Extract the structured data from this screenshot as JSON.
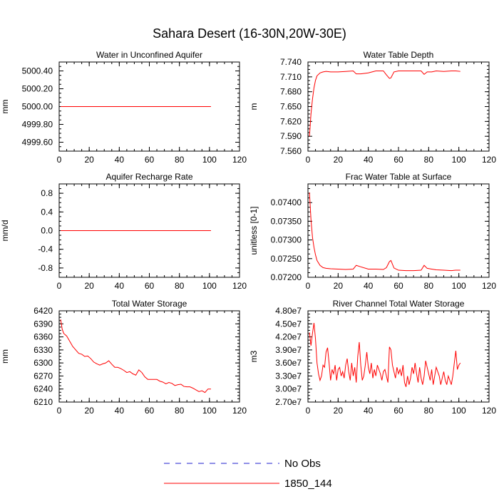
{
  "figure": {
    "title": "Sahara Desert (16-30N,20W-30E)"
  },
  "legend": {
    "items": [
      {
        "label": "No Obs",
        "color": "#1f1fcf",
        "dash": true
      },
      {
        "label": "1850_144",
        "color": "#ff0000",
        "dash": false
      }
    ]
  },
  "chart_data": [
    {
      "type": "line",
      "title": "Water in Unconfined Aquifer",
      "xlabel": "",
      "ylabel": "mm",
      "xlim": [
        0,
        120
      ],
      "ylim": [
        4999.5,
        5000.5
      ],
      "xticks": [
        0,
        20,
        40,
        60,
        80,
        100,
        120
      ],
      "yticks": [
        4999.6,
        4999.8,
        5000.0,
        5000.2,
        5000.4
      ],
      "ytick_labels": [
        "4999.60",
        "4999.80",
        "5000.00",
        "5000.20",
        "5000.40"
      ],
      "series": [
        {
          "name": "1850_144",
          "color": "#ff0000",
          "x": [
            1,
            101
          ],
          "y": [
            5000.0,
            5000.0
          ]
        }
      ]
    },
    {
      "type": "line",
      "title": "Water Table Depth",
      "xlabel": "",
      "ylabel": "m",
      "xlim": [
        0,
        120
      ],
      "ylim": [
        7.56,
        7.74
      ],
      "xticks": [
        0,
        20,
        40,
        60,
        80,
        100,
        120
      ],
      "yticks": [
        7.56,
        7.59,
        7.62,
        7.65,
        7.68,
        7.71,
        7.74
      ],
      "ytick_labels": [
        "7.560",
        "7.590",
        "7.620",
        "7.650",
        "7.680",
        "7.710",
        "7.740"
      ],
      "series": [
        {
          "name": "1850_144",
          "color": "#ff0000",
          "x": [
            1,
            2,
            3,
            4,
            5,
            6,
            8,
            10,
            12,
            15,
            20,
            25,
            30,
            32,
            35,
            40,
            45,
            50,
            52,
            54,
            55,
            57,
            60,
            65,
            70,
            75,
            77,
            79,
            82,
            85,
            90,
            95,
            98,
            101
          ],
          "y": [
            7.59,
            7.635,
            7.665,
            7.688,
            7.703,
            7.712,
            7.718,
            7.72,
            7.721,
            7.72,
            7.72,
            7.721,
            7.722,
            7.716,
            7.716,
            7.718,
            7.722,
            7.722,
            7.714,
            7.707,
            7.708,
            7.72,
            7.722,
            7.722,
            7.722,
            7.722,
            7.715,
            7.72,
            7.72,
            7.722,
            7.721,
            7.722,
            7.722,
            7.721
          ]
        }
      ]
    },
    {
      "type": "line",
      "title": "Aquifer Recharge Rate",
      "xlabel": "",
      "ylabel": "mm/d",
      "xlim": [
        0,
        120
      ],
      "ylim": [
        -1.0,
        1.0
      ],
      "xticks": [
        0,
        20,
        40,
        60,
        80,
        100,
        120
      ],
      "yticks": [
        -0.8,
        -0.4,
        0.0,
        0.4,
        0.8
      ],
      "ytick_labels": [
        "-0.8",
        "-0.4",
        "0.0",
        "0.4",
        "0.8"
      ],
      "series": [
        {
          "name": "1850_144",
          "color": "#ff0000",
          "x": [
            1,
            101
          ],
          "y": [
            0.0,
            0.0
          ]
        }
      ]
    },
    {
      "type": "line",
      "title": "Frac Water Table at Surface",
      "xlabel": "",
      "ylabel": "unitless [0-1]",
      "xlim": [
        0,
        120
      ],
      "ylim": [
        0.072,
        0.0745
      ],
      "xticks": [
        0,
        20,
        40,
        60,
        80,
        100,
        120
      ],
      "yticks": [
        0.072,
        0.0725,
        0.073,
        0.0735,
        0.074
      ],
      "ytick_labels": [
        "0.07200",
        "0.07250",
        "0.07300",
        "0.07350",
        "0.07400"
      ],
      "series": [
        {
          "name": "1850_144",
          "color": "#ff0000",
          "x": [
            1,
            2,
            3,
            4,
            5,
            6,
            8,
            10,
            12,
            15,
            20,
            25,
            30,
            32,
            35,
            40,
            45,
            50,
            52,
            54,
            55,
            57,
            60,
            65,
            70,
            75,
            77,
            79,
            82,
            85,
            90,
            95,
            98,
            101
          ],
          "y": [
            0.07427,
            0.07355,
            0.07307,
            0.0728,
            0.0726,
            0.07245,
            0.07232,
            0.07226,
            0.07224,
            0.07223,
            0.07222,
            0.07221,
            0.07222,
            0.07232,
            0.07228,
            0.07222,
            0.07222,
            0.07221,
            0.07226,
            0.07242,
            0.07245,
            0.07225,
            0.07219,
            0.07218,
            0.07218,
            0.07219,
            0.07232,
            0.07224,
            0.07222,
            0.0722,
            0.07219,
            0.07218,
            0.07219,
            0.07219
          ]
        }
      ]
    },
    {
      "type": "line",
      "title": "Total Water Storage",
      "xlabel": "",
      "ylabel": "mm",
      "xlim": [
        0,
        120
      ],
      "ylim": [
        6210,
        6420
      ],
      "xticks": [
        0,
        20,
        40,
        60,
        80,
        100,
        120
      ],
      "yticks": [
        6210,
        6240,
        6270,
        6300,
        6330,
        6360,
        6390,
        6420
      ],
      "ytick_labels": [
        "6210",
        "6240",
        "6270",
        "6300",
        "6330",
        "6360",
        "6390",
        "6420"
      ],
      "series": [
        {
          "name": "1850_144",
          "color": "#ff0000",
          "x": [
            1,
            2,
            3,
            5,
            7,
            9,
            11,
            13,
            15,
            17,
            19,
            21,
            23,
            25,
            27,
            29,
            31,
            33,
            35,
            37,
            39,
            41,
            43,
            45,
            47,
            49,
            51,
            53,
            55,
            57,
            59,
            61,
            63,
            65,
            67,
            69,
            71,
            73,
            75,
            77,
            79,
            81,
            83,
            85,
            87,
            89,
            91,
            93,
            95,
            97,
            99,
            101
          ],
          "y": [
            6400,
            6378,
            6368,
            6362,
            6350,
            6338,
            6330,
            6322,
            6320,
            6315,
            6316,
            6310,
            6302,
            6298,
            6295,
            6298,
            6300,
            6305,
            6297,
            6290,
            6290,
            6287,
            6283,
            6278,
            6280,
            6275,
            6272,
            6284,
            6278,
            6268,
            6262,
            6262,
            6262,
            6262,
            6258,
            6256,
            6252,
            6255,
            6253,
            6248,
            6250,
            6251,
            6246,
            6245,
            6245,
            6242,
            6238,
            6234,
            6236,
            6232,
            6240,
            6240
          ]
        }
      ]
    },
    {
      "type": "line",
      "title": "River Channel Total Water Storage",
      "xlabel": "",
      "ylabel": "m3",
      "xlim": [
        0,
        120
      ],
      "ylim": [
        27000000.0,
        48000000.0
      ],
      "xticks": [
        0,
        20,
        40,
        60,
        80,
        100,
        120
      ],
      "yticks": [
        27000000.0,
        30000000.0,
        33000000.0,
        36000000.0,
        39000000.0,
        42000000.0,
        45000000.0,
        48000000.0
      ],
      "ytick_labels": [
        "2.70e7",
        "3.00e7",
        "3.30e7",
        "3.60e7",
        "3.90e7",
        "4.20e7",
        "4.50e7",
        "4.80e7"
      ],
      "series": [
        {
          "name": "1850_144",
          "color": "#ff0000",
          "x": [
            1,
            2,
            3,
            4,
            5,
            6,
            7,
            8,
            9,
            10,
            11,
            12,
            13,
            14,
            15,
            16,
            17,
            18,
            19,
            20,
            21,
            22,
            23,
            24,
            25,
            26,
            27,
            28,
            29,
            30,
            31,
            32,
            33,
            34,
            35,
            36,
            37,
            38,
            39,
            40,
            41,
            42,
            43,
            44,
            45,
            46,
            47,
            48,
            49,
            50,
            51,
            52,
            53,
            54,
            55,
            56,
            57,
            58,
            59,
            60,
            61,
            62,
            63,
            64,
            65,
            66,
            67,
            68,
            69,
            70,
            71,
            72,
            73,
            74,
            75,
            76,
            77,
            78,
            79,
            80,
            81,
            82,
            83,
            84,
            85,
            86,
            87,
            88,
            89,
            90,
            91,
            92,
            93,
            94,
            95,
            96,
            97,
            98,
            99,
            100,
            101
          ],
          "y": [
            43000000.0,
            40000000.0,
            42800000.0,
            45200000.0,
            41500000.0,
            36000000.0,
            33500000.0,
            32000000.0,
            33000000.0,
            35500000.0,
            35000000.0,
            38500000.0,
            39500000.0,
            36000000.0,
            32000000.0,
            34500000.0,
            33500000.0,
            35500000.0,
            32000000.0,
            34500000.0,
            35000000.0,
            33000000.0,
            34000000.0,
            32500000.0,
            35500000.0,
            37000000.0,
            34000000.0,
            32000000.0,
            36000000.0,
            33000000.0,
            35000000.0,
            31500000.0,
            37500000.0,
            40800000.0,
            35500000.0,
            32000000.0,
            33000000.0,
            35500000.0,
            38500000.0,
            35000000.0,
            33500000.0,
            36000000.0,
            32500000.0,
            34500000.0,
            33000000.0,
            35500000.0,
            34500000.0,
            33500000.0,
            32000000.0,
            34000000.0,
            34500000.0,
            33000000.0,
            31500000.0,
            39700000.0,
            39000000.0,
            35500000.0,
            34000000.0,
            32500000.0,
            35000000.0,
            33500000.0,
            34500000.0,
            33000000.0,
            35500000.0,
            31500000.0,
            30500000.0,
            33000000.0,
            31000000.0,
            32500000.0,
            35000000.0,
            33500000.0,
            36000000.0,
            33500000.0,
            31500000.0,
            35000000.0,
            32500000.0,
            31000000.0,
            33000000.0,
            36500000.0,
            35000000.0,
            33500000.0,
            32000000.0,
            34500000.0,
            31000000.0,
            33000000.0,
            35000000.0,
            34000000.0,
            33000000.0,
            31000000.0,
            32500000.0,
            34000000.0,
            32000000.0,
            31000000.0,
            33000000.0,
            32000000.0,
            31000000.0,
            33000000.0,
            36000000.0,
            38800000.0,
            34500000.0,
            35500000.0,
            36000000.0
          ]
        }
      ]
    }
  ]
}
